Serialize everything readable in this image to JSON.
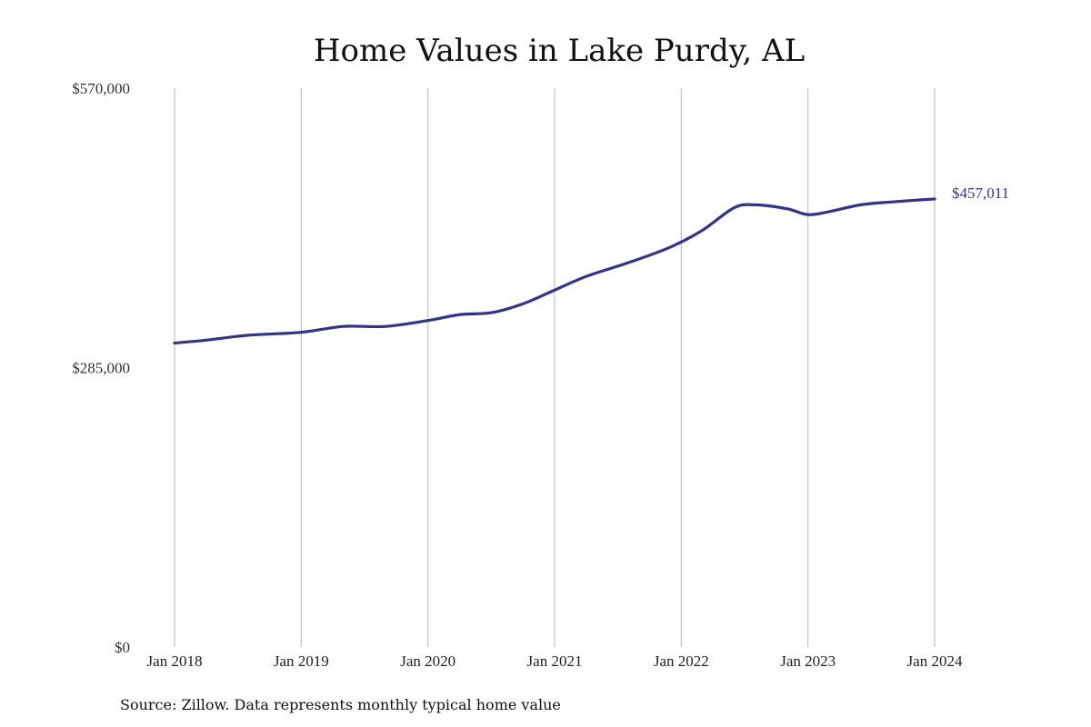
{
  "chart_data": {
    "type": "line",
    "title": "Home Values in Lake Purdy, AL",
    "xlabel": "",
    "ylabel": "",
    "ylim": [
      0,
      570000
    ],
    "yticks": [
      {
        "value": 0,
        "label": "$0"
      },
      {
        "value": 285000,
        "label": "$285,000"
      },
      {
        "value": 570000,
        "label": "$570,000"
      }
    ],
    "xticks": [
      {
        "date": "2018-01",
        "label": "Jan 2018"
      },
      {
        "date": "2019-01",
        "label": "Jan 2019"
      },
      {
        "date": "2020-01",
        "label": "Jan 2020"
      },
      {
        "date": "2021-01",
        "label": "Jan 2021"
      },
      {
        "date": "2022-01",
        "label": "Jan 2022"
      },
      {
        "date": "2023-01",
        "label": "Jan 2023"
      },
      {
        "date": "2024-01",
        "label": "Jan 2024"
      }
    ],
    "grid": "vertical",
    "end_label": "$457,011",
    "line_color": "#33338a",
    "series": [
      {
        "points": [
          {
            "x": "2018-01",
            "y": 310000
          },
          {
            "x": "2018-04",
            "y": 313000
          },
          {
            "x": "2018-08",
            "y": 318000
          },
          {
            "x": "2019-01",
            "y": 321000
          },
          {
            "x": "2019-05",
            "y": 327000
          },
          {
            "x": "2019-09",
            "y": 327000
          },
          {
            "x": "2020-01",
            "y": 333000
          },
          {
            "x": "2020-04",
            "y": 339000
          },
          {
            "x": "2020-07",
            "y": 341000
          },
          {
            "x": "2020-10",
            "y": 350000
          },
          {
            "x": "2021-01",
            "y": 364000
          },
          {
            "x": "2021-04",
            "y": 378000
          },
          {
            "x": "2021-08",
            "y": 392000
          },
          {
            "x": "2021-12",
            "y": 408000
          },
          {
            "x": "2022-03",
            "y": 425000
          },
          {
            "x": "2022-06",
            "y": 448000
          },
          {
            "x": "2022-08",
            "y": 451000
          },
          {
            "x": "2022-11",
            "y": 447000
          },
          {
            "x": "2023-01",
            "y": 441000
          },
          {
            "x": "2023-03",
            "y": 444000
          },
          {
            "x": "2023-06",
            "y": 451000
          },
          {
            "x": "2023-09",
            "y": 454000
          },
          {
            "x": "2024-01",
            "y": 457011
          }
        ]
      }
    ]
  },
  "footer": {
    "source": "Source: Zillow. Data represents monthly typical home value"
  }
}
